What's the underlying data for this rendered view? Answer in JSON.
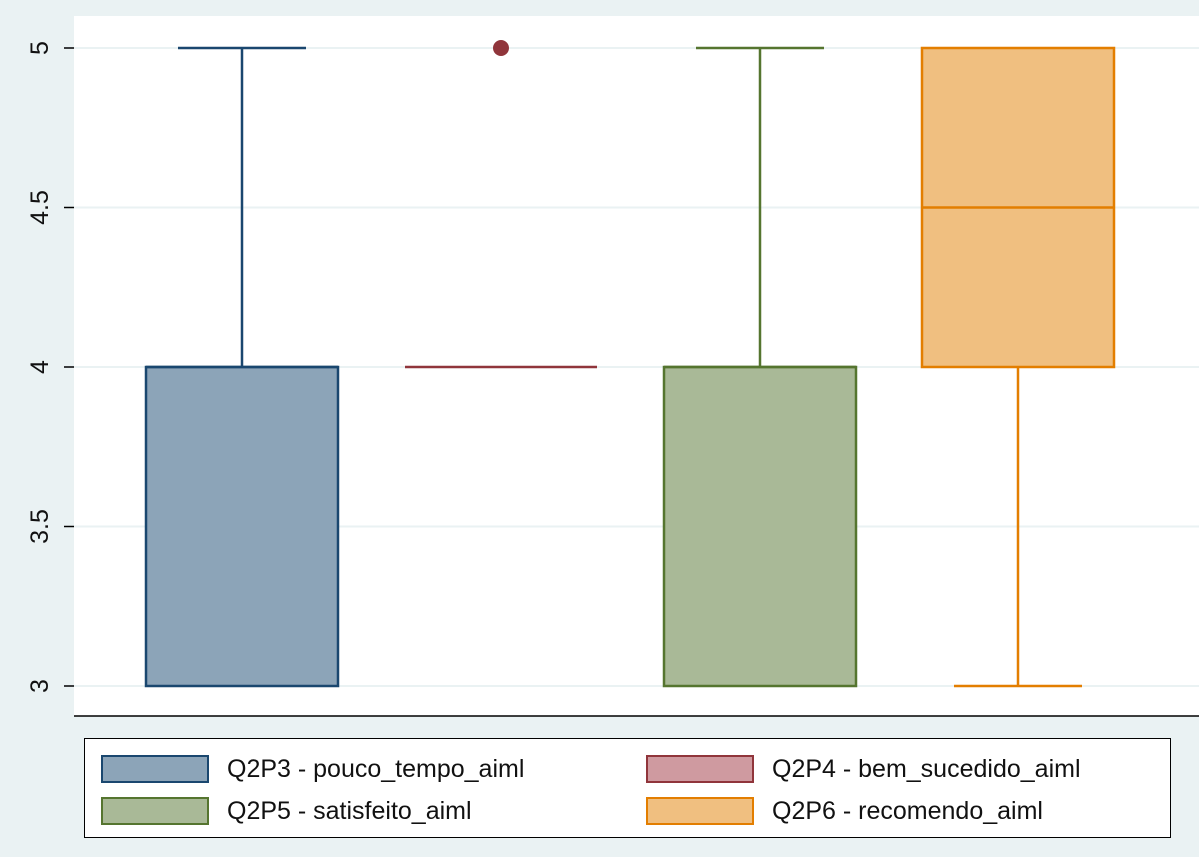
{
  "chart_data": {
    "type": "box",
    "ylim": [
      3,
      5
    ],
    "y_ticks": [
      "3",
      "3.5",
      "4",
      "4.5",
      "5"
    ],
    "grid": true,
    "legend_position": "bottom",
    "series": [
      {
        "name": "Q2P3 - pouco_tempo_aiml",
        "min": 3,
        "q1": 3,
        "median": 4,
        "q3": 4,
        "max": 5,
        "outliers": [],
        "fill": "#8ca4b8",
        "stroke": "#1a476f"
      },
      {
        "name": "Q2P4 - bem_sucedido_aiml",
        "min": 4,
        "q1": 4,
        "median": 4,
        "q3": 4,
        "max": 4,
        "outliers": [
          5
        ],
        "fill": "#cf9aa0",
        "stroke": "#90353b"
      },
      {
        "name": "Q2P5 - satisfeito_aiml",
        "min": 3,
        "q1": 3,
        "median": 4,
        "q3": 4,
        "max": 5,
        "outliers": [],
        "fill": "#a9b997",
        "stroke": "#55752f"
      },
      {
        "name": "Q2P6 - recomendo_aiml",
        "min": 3,
        "q1": 4,
        "median": 4.5,
        "q3": 5,
        "max": 5,
        "outliers": [],
        "fill": "#f0bf80",
        "stroke": "#e37e00"
      }
    ]
  },
  "colors": {
    "background": "#eaf2f3",
    "plot_background": "#ffffff",
    "grid": "#eaf2f3"
  }
}
